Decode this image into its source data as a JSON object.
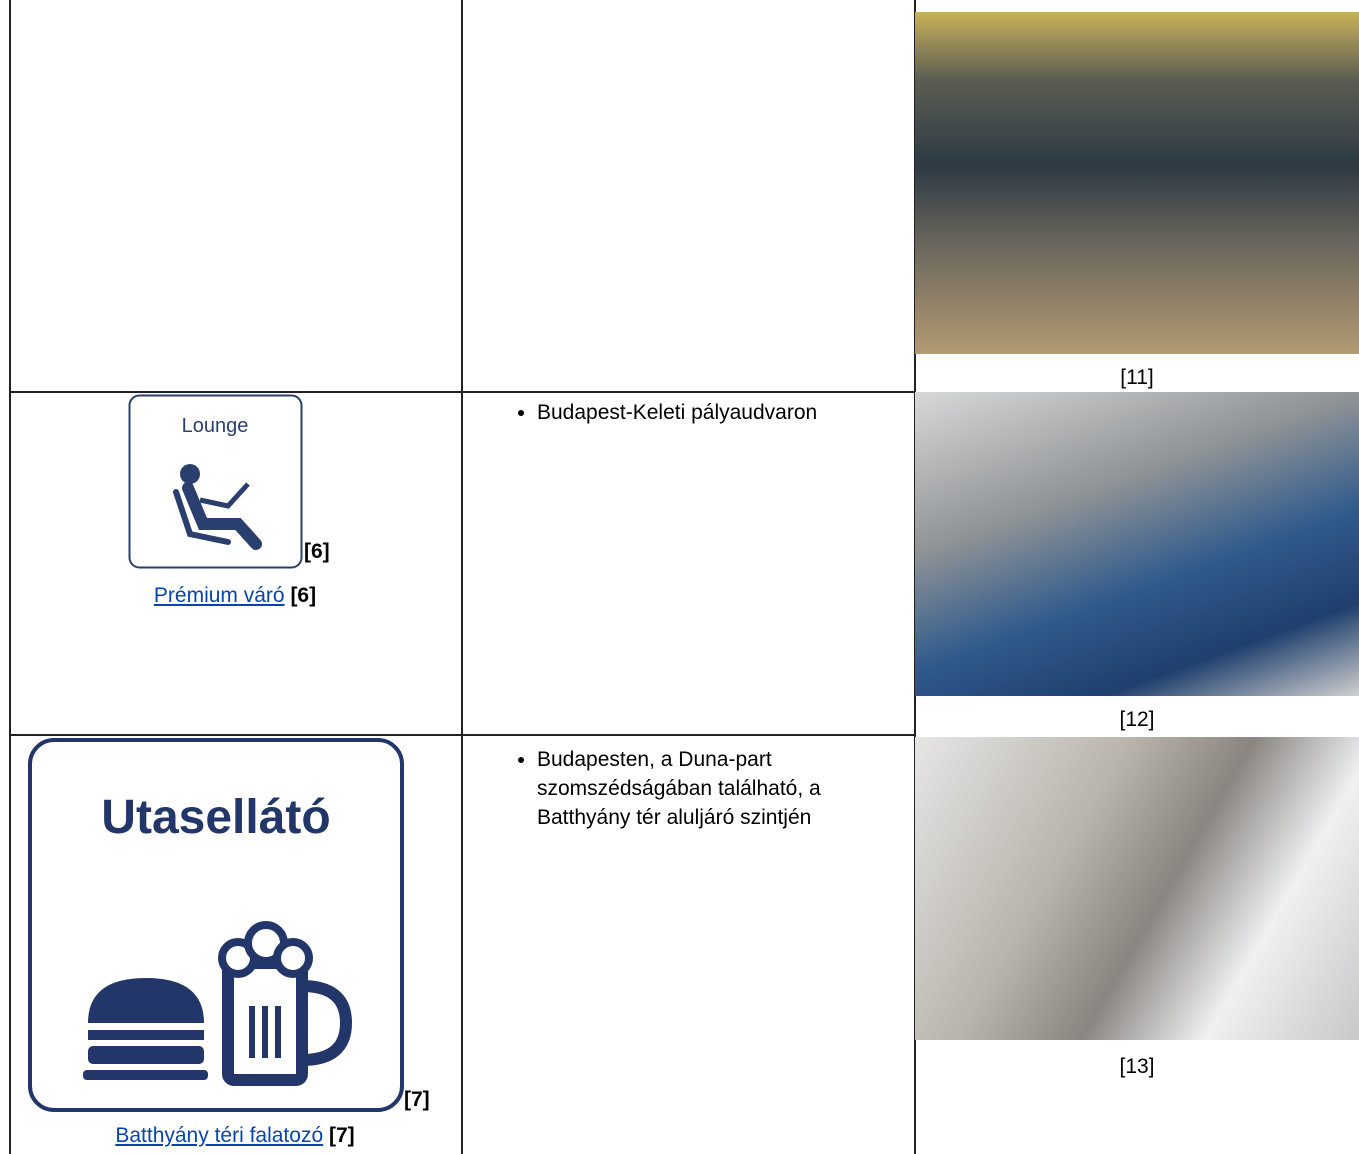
{
  "rows": [
    {
      "caption": "[11]"
    },
    {
      "icon_text": "Lounge",
      "icon_ref": "[6]",
      "link": "Prémium váró",
      "ref": "[6]",
      "bullets": [
        "Budapest-Keleti pályaudvaron"
      ],
      "caption": "[12]"
    },
    {
      "icon_text": "Utasellátó",
      "icon_ref": "[7]",
      "link": "Batthyány téri falatozó",
      "ref": "[7]",
      "bullets": [
        "Budapesten, a Duna-part szomszédságában található, a Batthyány tér aluljáró szintjén"
      ],
      "caption": "[13]"
    }
  ]
}
